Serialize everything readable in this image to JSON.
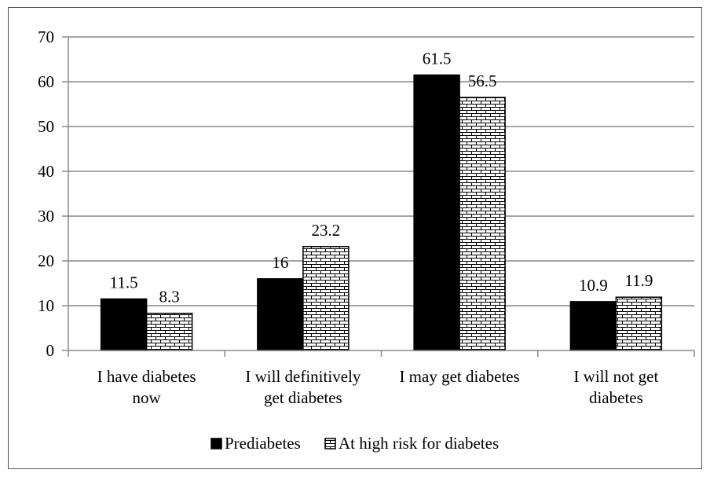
{
  "chart_data": {
    "type": "bar",
    "title": "",
    "xlabel": "",
    "ylabel": "",
    "ylim": [
      0,
      70
    ],
    "yticks": [
      0,
      10,
      20,
      30,
      40,
      50,
      60,
      70
    ],
    "grid": true,
    "legend_position": "bottom",
    "categories": [
      [
        "I have diabetes",
        "now"
      ],
      [
        "I will definitively",
        "get diabetes"
      ],
      [
        "I may get diabetes"
      ],
      [
        "I will not get",
        "diabetes"
      ]
    ],
    "series": [
      {
        "name": "Prediabetes",
        "values": [
          11.5,
          16,
          61.5,
          10.9
        ],
        "labels": [
          "11.5",
          "16",
          "61.5",
          "10.9"
        ],
        "fill": "#000000",
        "pattern": "solid"
      },
      {
        "name": "At high risk for diabetes",
        "values": [
          8.3,
          23.2,
          56.5,
          11.9
        ],
        "labels": [
          "8.3",
          "23.2",
          "56.5",
          "11.9"
        ],
        "fill": "#ffffff",
        "pattern": "brick"
      }
    ],
    "colors": {
      "axis": "#888888",
      "grid": "#888888",
      "text": "#000000",
      "frame": "#555555"
    }
  }
}
